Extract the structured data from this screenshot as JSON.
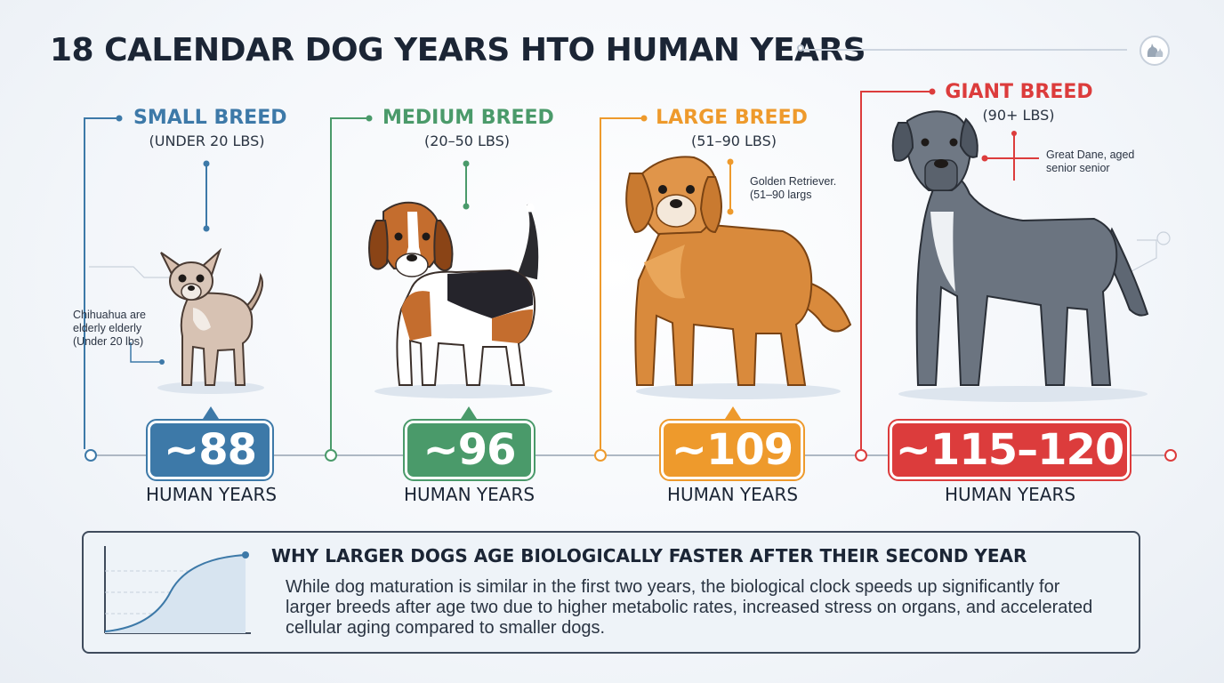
{
  "title": "18 CALENDAR DOG YEARS HTO HUMAN YEARS",
  "colors": {
    "small": "#3d79a8",
    "medium": "#4a9a6a",
    "large": "#ee9a2c",
    "giant": "#dc3c3c",
    "text": "#1b2535"
  },
  "icons": {
    "badge": "dog-cat-icon"
  },
  "breeds": [
    {
      "name": "SMALL BREED",
      "weight": "(UNDER 20 LBS)",
      "note_lines": [
        "Chihuahua are",
        "elderly elderly",
        "(Under 20 lbs)"
      ],
      "value": "~88",
      "unit": "HUMAN YEARS"
    },
    {
      "name": "MEDIUM BREED",
      "weight": "(20–50 LBS)",
      "value": "~96",
      "unit": "HUMAN YEARS"
    },
    {
      "name": "LARGE BREED",
      "weight": "(51–90 LBS)",
      "note_lines": [
        "Golden Retriever.",
        "(51–90 largs"
      ],
      "value": "~109",
      "unit": "HUMAN YEARS"
    },
    {
      "name": "GIANT BREED",
      "weight": "(90+ LBS)",
      "note_lines": [
        "Great Dane, aged",
        "senior senior"
      ],
      "value": "~115–120",
      "unit": "HUMAN YEARS"
    }
  ],
  "panel": {
    "heading": "WHY LARGER DOGS AGE BIOLOGICALLY FASTER AFTER THEIR SECOND YEAR",
    "text": "While dog maturation is similar in the first two years, the biological clock speeds up significantly for larger breeds after age two due to higher metabolic rates, increased stress on organs, and accelerated cellular aging compared to smaller dogs."
  }
}
